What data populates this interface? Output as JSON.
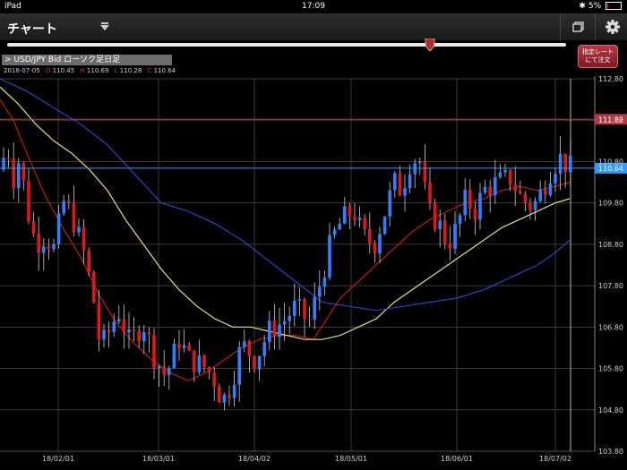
{
  "status_bar": {
    "device": "iPad",
    "time": "17:09",
    "battery": "5%"
  },
  "header": {
    "title": "チャート"
  },
  "toolbar": {
    "window_icon": "window-icon",
    "settings_icon": "gear-icon"
  },
  "slider": {
    "position": 0.76
  },
  "order_button": {
    "line1": "指定レート",
    "line2": "にて注文"
  },
  "instrument": {
    "label": "> USD/JPY  Bid  ローソク足日足"
  },
  "ohlc": {
    "date": "2018-07-05",
    "open_key": "O",
    "open": "110.45",
    "high_key": "H",
    "high": "110.69",
    "low_key": "L",
    "low": "110.28",
    "close_key": "C",
    "close": "110.64"
  },
  "colors": {
    "up": "#2f7fff",
    "down": "#e01818",
    "ma_short": "#c01a1a",
    "ma_mid": "#e8e070",
    "ma_long": "#2a44c8",
    "accent_red": "#b53842"
  },
  "chart_data": {
    "type": "candlestick",
    "y_ticks": [
      "112.80",
      "111.80",
      "110.80",
      "109.80",
      "108.80",
      "107.80",
      "106.80",
      "105.80",
      "104.80",
      "103.80"
    ],
    "x_ticks": [
      "18/02/01",
      "18/03/01",
      "18/04/02",
      "18/05/01",
      "18/06/01",
      "18/07/02"
    ],
    "ylim": [
      103.8,
      112.8
    ],
    "price_lines": [
      {
        "label": "111.82",
        "value": 111.82,
        "color": "#b53842"
      },
      {
        "label": "110.64",
        "value": 110.64,
        "color": "#2f9bff"
      }
    ],
    "moving_averages": [
      {
        "color": "#c01a1a",
        "points": [
          [
            0,
            112.3
          ],
          [
            15,
            111.8
          ],
          [
            30,
            111.0
          ],
          [
            50,
            110.0
          ],
          [
            70,
            109.2
          ],
          [
            90,
            108.5
          ],
          [
            110,
            107.6
          ],
          [
            130,
            106.9
          ],
          [
            150,
            106.4
          ],
          [
            170,
            106.0
          ],
          [
            190,
            105.7
          ],
          [
            210,
            105.5
          ],
          [
            230,
            105.7
          ],
          [
            250,
            106.0
          ],
          [
            270,
            106.3
          ],
          [
            290,
            106.5
          ],
          [
            310,
            106.6
          ],
          [
            330,
            106.6
          ],
          [
            350,
            106.5
          ],
          [
            365,
            107.0
          ],
          [
            380,
            107.5
          ],
          [
            400,
            107.9
          ],
          [
            420,
            108.3
          ],
          [
            440,
            108.7
          ],
          [
            460,
            109.1
          ],
          [
            480,
            109.4
          ],
          [
            500,
            109.6
          ],
          [
            520,
            109.8
          ],
          [
            540,
            109.9
          ],
          [
            560,
            110.1
          ],
          [
            580,
            110.2
          ],
          [
            600,
            110.1
          ],
          [
            620,
            110.2
          ],
          [
            636,
            110.3
          ]
        ]
      },
      {
        "color": "#e8e070",
        "points": [
          [
            0,
            112.6
          ],
          [
            20,
            112.2
          ],
          [
            40,
            111.7
          ],
          [
            60,
            111.3
          ],
          [
            80,
            111.0
          ],
          [
            100,
            110.6
          ],
          [
            120,
            110.1
          ],
          [
            140,
            109.4
          ],
          [
            160,
            108.8
          ],
          [
            180,
            108.2
          ],
          [
            200,
            107.7
          ],
          [
            220,
            107.3
          ],
          [
            240,
            107.0
          ],
          [
            260,
            106.8
          ],
          [
            280,
            106.8
          ],
          [
            300,
            106.7
          ],
          [
            320,
            106.6
          ],
          [
            340,
            106.5
          ],
          [
            360,
            106.5
          ],
          [
            380,
            106.6
          ],
          [
            400,
            106.8
          ],
          [
            420,
            107.0
          ],
          [
            440,
            107.4
          ],
          [
            460,
            107.7
          ],
          [
            480,
            108.0
          ],
          [
            500,
            108.3
          ],
          [
            520,
            108.6
          ],
          [
            540,
            108.9
          ],
          [
            560,
            109.2
          ],
          [
            580,
            109.4
          ],
          [
            600,
            109.6
          ],
          [
            620,
            109.8
          ],
          [
            636,
            109.9
          ]
        ]
      },
      {
        "color": "#2a44c8",
        "points": [
          [
            0,
            112.8
          ],
          [
            30,
            112.5
          ],
          [
            60,
            112.1
          ],
          [
            90,
            111.7
          ],
          [
            120,
            111.2
          ],
          [
            150,
            110.5
          ],
          [
            180,
            109.8
          ],
          [
            210,
            109.6
          ],
          [
            240,
            109.3
          ],
          [
            270,
            108.9
          ],
          [
            300,
            108.4
          ],
          [
            330,
            107.9
          ],
          [
            360,
            107.4
          ],
          [
            390,
            107.3
          ],
          [
            420,
            107.2
          ],
          [
            450,
            107.3
          ],
          [
            480,
            107.4
          ],
          [
            510,
            107.5
          ],
          [
            540,
            107.7
          ],
          [
            570,
            108.0
          ],
          [
            600,
            108.3
          ],
          [
            620,
            108.6
          ],
          [
            636,
            108.9
          ]
        ]
      }
    ]
  }
}
